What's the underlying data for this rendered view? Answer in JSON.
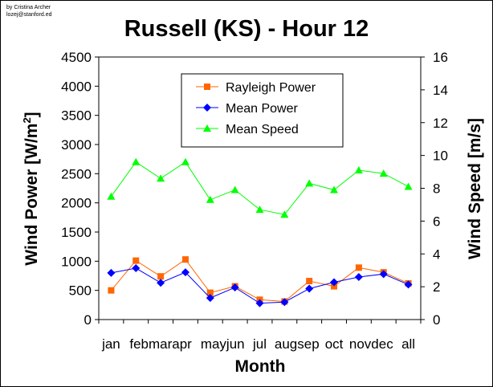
{
  "credit": [
    "by Cristina Archer",
    "lozej@stanford.ed"
  ],
  "chart_data": {
    "type": "line",
    "title": "Russell (KS) - Hour 12",
    "xlabel": "Month",
    "ylabel_left": "Wind Power [W/m",
    "ylabel_left_sup": "2",
    "ylabel_left_end": "]",
    "ylabel_right": "Wind Speed [m/s]",
    "categories": [
      "jan",
      "feb",
      "mar",
      "apr",
      "may",
      "jun",
      "jul",
      "aug",
      "sep",
      "oct",
      "nov",
      "dec",
      "all"
    ],
    "category_labels": [
      "jan",
      "febmarapr",
      "mayjun",
      "jul",
      "augsep",
      "oct",
      "novdec",
      "all"
    ],
    "ylim_left": [
      0,
      4500
    ],
    "yticks_left": [
      "0",
      "500",
      "1000",
      "1500",
      "2000",
      "2500",
      "3000",
      "3500",
      "4000",
      "4500"
    ],
    "ylim_right": [
      0,
      16
    ],
    "yticks_right": [
      "0",
      "2",
      "4",
      "6",
      "8",
      "10",
      "12",
      "14",
      "16"
    ],
    "legend_position": "top-center",
    "series": [
      {
        "name": "Rayleigh Power",
        "axis": "left",
        "color": "#ff6600",
        "marker": "square",
        "values": [
          500,
          1010,
          740,
          1030,
          460,
          570,
          340,
          310,
          660,
          570,
          890,
          810,
          620
        ]
      },
      {
        "name": "Mean Power",
        "axis": "left",
        "color": "#0000ff",
        "marker": "diamond",
        "values": [
          800,
          880,
          630,
          810,
          370,
          550,
          280,
          300,
          530,
          640,
          730,
          780,
          600
        ]
      },
      {
        "name": "Mean Speed",
        "axis": "right",
        "color": "#00ff00",
        "marker": "triangle",
        "values": [
          7.5,
          9.6,
          8.6,
          9.6,
          7.3,
          7.9,
          6.7,
          6.4,
          8.3,
          7.9,
          9.1,
          8.9,
          8.1
        ]
      }
    ]
  }
}
